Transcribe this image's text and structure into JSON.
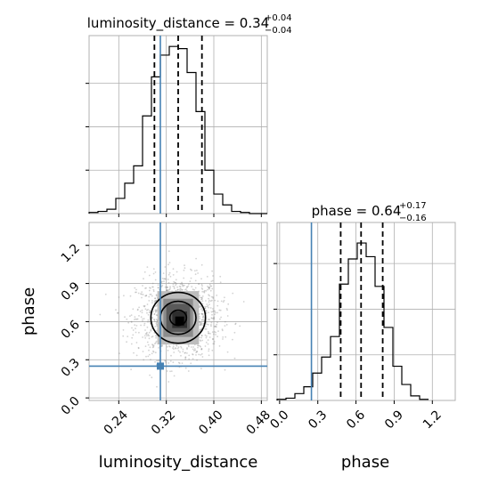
{
  "chart_data": {
    "type": "corner",
    "parameters": [
      "luminosity_distance",
      "phase"
    ],
    "truth": {
      "luminosity_distance": 0.31,
      "phase": 0.25
    },
    "panels": [
      {
        "id": "hist-luminosity-distance",
        "type": "step-histogram",
        "title_main": "luminosity_distance = 0.34",
        "title_sup": "+0.04",
        "title_sub": "−0.04",
        "xlim": [
          0.19,
          0.49
        ],
        "bin_edges": [
          0.19,
          0.205,
          0.22,
          0.235,
          0.25,
          0.265,
          0.28,
          0.295,
          0.31,
          0.325,
          0.34,
          0.355,
          0.37,
          0.385,
          0.4,
          0.415,
          0.43,
          0.445,
          0.46,
          0.475,
          0.49
        ],
        "counts": [
          0.5,
          1,
          2,
          7,
          14,
          22,
          45,
          63,
          73,
          77,
          76,
          65,
          47,
          20,
          9,
          4,
          1,
          0.5,
          0,
          0
        ],
        "ymax": 82,
        "quantiles": [
          0.3,
          0.34,
          0.38
        ],
        "xticks": [
          0.24,
          0.32,
          0.4,
          0.48
        ]
      },
      {
        "id": "hist-phase",
        "type": "step-histogram",
        "title_main": "phase = 0.64",
        "title_sup": "+0.17",
        "title_sub": "−0.16",
        "xlim": [
          -0.02,
          1.38
        ],
        "bin_edges": [
          -0.02,
          0.05,
          0.12,
          0.19,
          0.26,
          0.33,
          0.4,
          0.47,
          0.54,
          0.61,
          0.68,
          0.75,
          0.82,
          0.89,
          0.96,
          1.03,
          1.1,
          1.17
        ],
        "counts": [
          0.5,
          1,
          3,
          6,
          12,
          19,
          28,
          51,
          62,
          69,
          63,
          50,
          32,
          15,
          7,
          2,
          0.5
        ],
        "ymax": 78,
        "quantiles": [
          0.48,
          0.64,
          0.81
        ],
        "xticks": [
          0.0,
          0.3,
          0.6,
          0.9,
          1.2
        ],
        "xtick_labels": [
          "0.0",
          "0.3",
          "0.6",
          "0.9",
          "1.2"
        ]
      },
      {
        "id": "scatter-phase-vs-distance",
        "type": "2d-density",
        "xlim": [
          0.19,
          0.49
        ],
        "ylim": [
          -0.02,
          1.38
        ],
        "xticks": [
          0.24,
          0.32,
          0.4,
          0.48
        ],
        "xtick_labels": [
          "0.24",
          "0.32",
          "0.40",
          "0.48"
        ],
        "yticks": [
          0.0,
          0.3,
          0.6,
          0.9,
          1.2
        ],
        "ytick_labels": [
          "0.0",
          "0.3",
          "0.6",
          "0.9",
          "1.2"
        ],
        "xlabel": "luminosity_distance",
        "ylabel": "phase",
        "center": [
          0.34,
          0.63
        ],
        "spread": [
          0.035,
          0.16
        ],
        "contour_levels": [
          {
            "rx": 0.014,
            "ry": 0.06
          },
          {
            "rx": 0.03,
            "ry": 0.13
          },
          {
            "rx": 0.046,
            "ry": 0.2
          }
        ]
      }
    ],
    "bottom_right_xlabel": "phase",
    "colors": {
      "truth": "#4682b4",
      "line": "#000000",
      "grid": "#b0b0b0",
      "points": "#808080"
    }
  }
}
